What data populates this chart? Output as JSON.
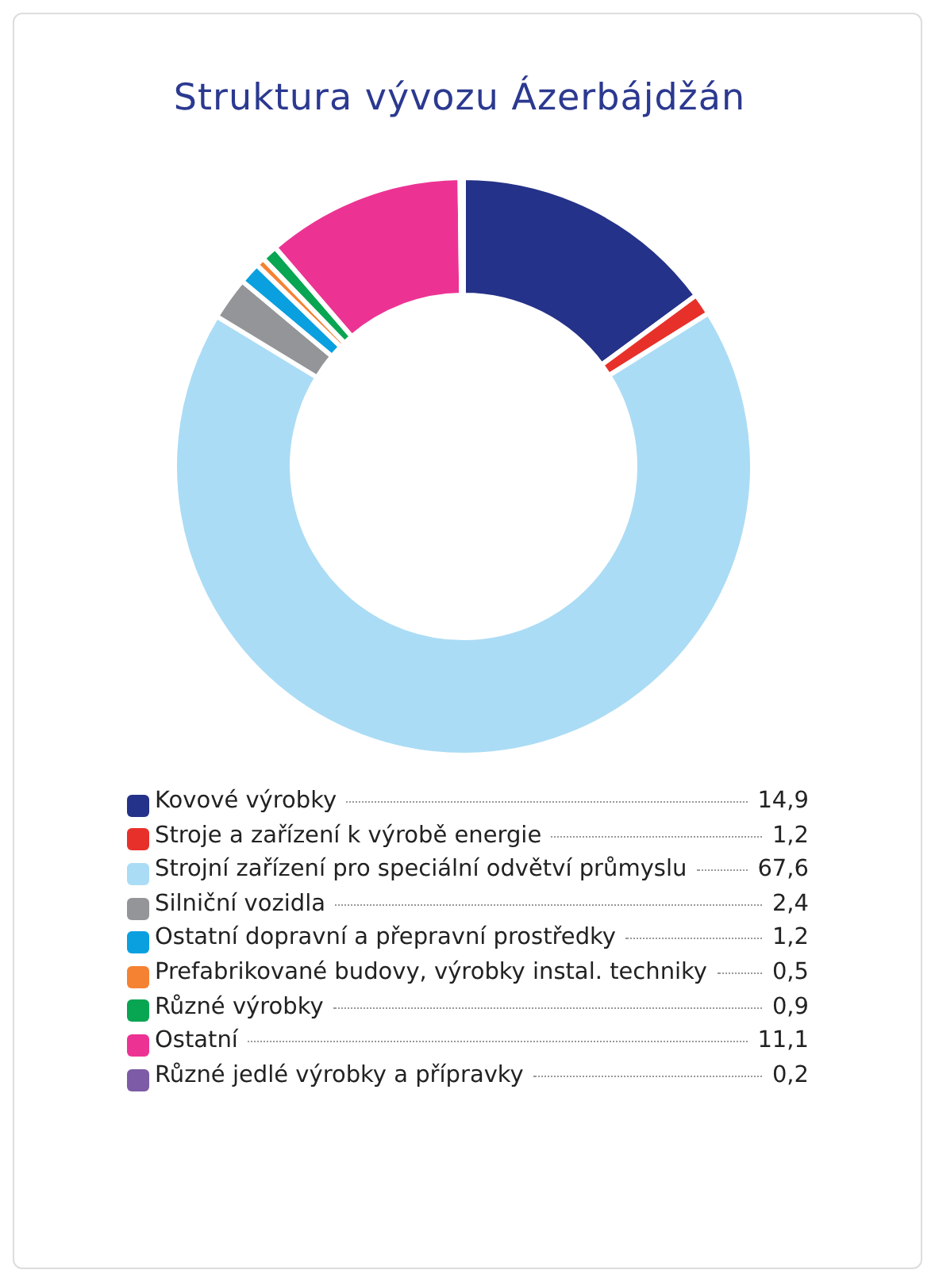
{
  "chart_data": {
    "type": "donut",
    "title": "Struktura vývozu Ázerbájdžán",
    "categories": [
      "Kovové výrobky",
      "Stroje a zařízení k výrobě energie",
      "Strojní zařízení pro speciální odvětví průmyslu",
      "Silniční vozidla",
      "Ostatní dopravní a přepravní prostředky",
      "Prefabrikované budovy, výrobky instal. techniky",
      "Různé výrobky",
      "Ostatní",
      "Různé jedlé výrobky a přípravky"
    ],
    "values": [
      14.9,
      1.2,
      67.6,
      2.4,
      1.2,
      0.5,
      0.9,
      11.1,
      0.2
    ],
    "value_labels": [
      "14,9",
      "1,2",
      "67,6",
      "2,4",
      "1,2",
      "0,5",
      "0,9",
      "11,1",
      "0,2"
    ],
    "colors": [
      "#253289",
      "#e8302a",
      "#abdcf5",
      "#939598",
      "#0aa0e0",
      "#f58233",
      "#08a552",
      "#ec3394",
      "#7d5ba6"
    ],
    "legend": "bottom"
  }
}
